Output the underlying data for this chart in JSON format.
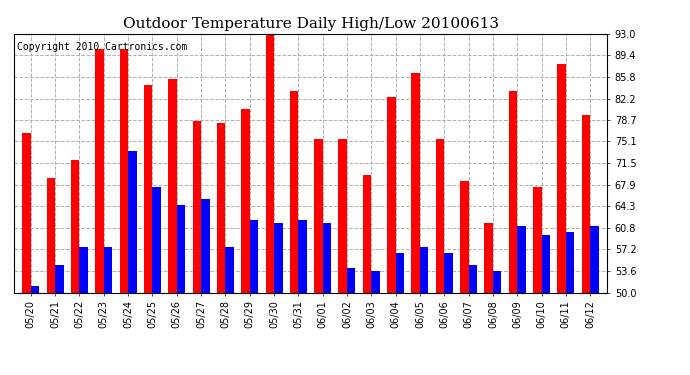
{
  "title": "Outdoor Temperature Daily High/Low 20100613",
  "copyright": "Copyright 2010 Cartronics.com",
  "dates": [
    "05/20",
    "05/21",
    "05/22",
    "05/23",
    "05/24",
    "05/25",
    "05/26",
    "05/27",
    "05/28",
    "05/29",
    "05/30",
    "05/31",
    "06/01",
    "06/02",
    "06/03",
    "06/04",
    "06/05",
    "06/06",
    "06/07",
    "06/08",
    "06/09",
    "06/10",
    "06/11",
    "06/12"
  ],
  "highs": [
    76.5,
    69.0,
    72.0,
    90.5,
    90.5,
    84.5,
    85.5,
    78.5,
    78.2,
    80.5,
    93.0,
    83.5,
    75.5,
    75.5,
    69.5,
    82.5,
    86.5,
    75.5,
    68.5,
    61.5,
    83.5,
    67.5,
    88.0,
    79.5
  ],
  "lows": [
    51.0,
    54.5,
    57.5,
    57.5,
    73.5,
    67.5,
    64.5,
    65.5,
    57.5,
    62.0,
    61.5,
    62.0,
    61.5,
    54.0,
    53.5,
    56.5,
    57.5,
    56.5,
    54.5,
    53.5,
    61.0,
    59.5,
    60.0,
    61.0
  ],
  "ylim": [
    50.0,
    93.0
  ],
  "yticks": [
    50.0,
    53.6,
    57.2,
    60.8,
    64.3,
    67.9,
    71.5,
    75.1,
    78.7,
    82.2,
    85.8,
    89.4,
    93.0
  ],
  "high_color": "#ff0000",
  "low_color": "#0000ff",
  "background_color": "#ffffff",
  "grid_color": "#b0b0b0",
  "title_fontsize": 11,
  "copyright_fontsize": 7,
  "tick_fontsize": 7
}
